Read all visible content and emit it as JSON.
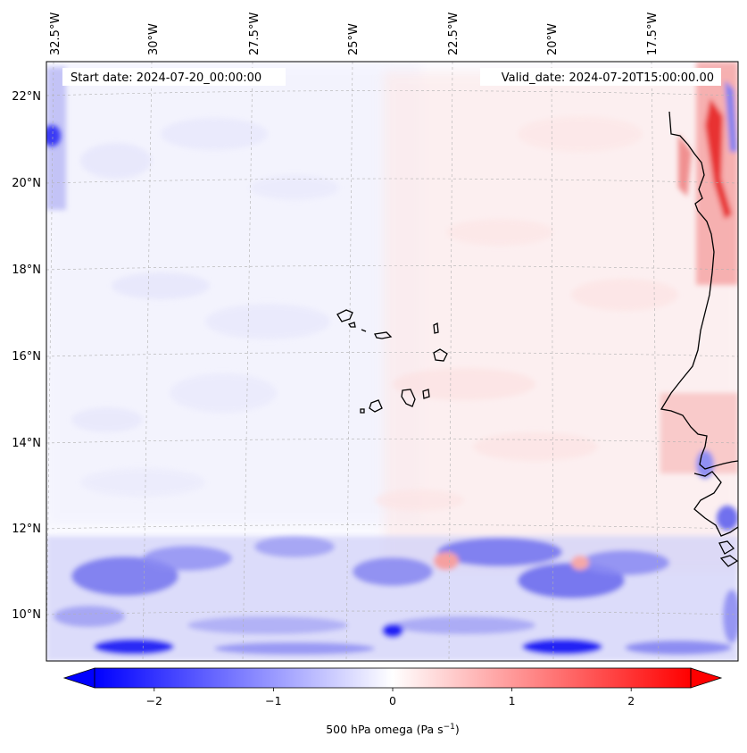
{
  "map": {
    "start_label": "Start date: 2024-07-20_00:00:00",
    "valid_label": "Valid_date: 2024-07-20T15:00:00.00",
    "lon_labels": [
      "32.5°W",
      "30°W",
      "27.5°W",
      "25°W",
      "22.5°W",
      "20°W",
      "17.5°W"
    ],
    "lat_labels": [
      "22°N",
      "20°N",
      "18°N",
      "16°N",
      "14°N",
      "12°N",
      "10°N"
    ],
    "features": {
      "islands": "Cape Verde islands",
      "coast": "West African coastline"
    }
  },
  "colorbar": {
    "label": "500 hPa omega (Pa s",
    "label_sup": "−1",
    "label_close": ")",
    "ticks": [
      "−2",
      "−1",
      "0",
      "1",
      "2"
    ],
    "tick_values": [
      -2,
      -1,
      0,
      1,
      2
    ],
    "range": [
      -2.5,
      2.5
    ],
    "colormap": [
      "#0000ff",
      "#ffffff",
      "#ff0000"
    ],
    "extend": "both"
  },
  "colors": {
    "negative": "#0000ff",
    "positive": "#ff0000",
    "neutral": "#ffffff",
    "coastline": "#000000",
    "gridline": "#b0b0b0"
  }
}
